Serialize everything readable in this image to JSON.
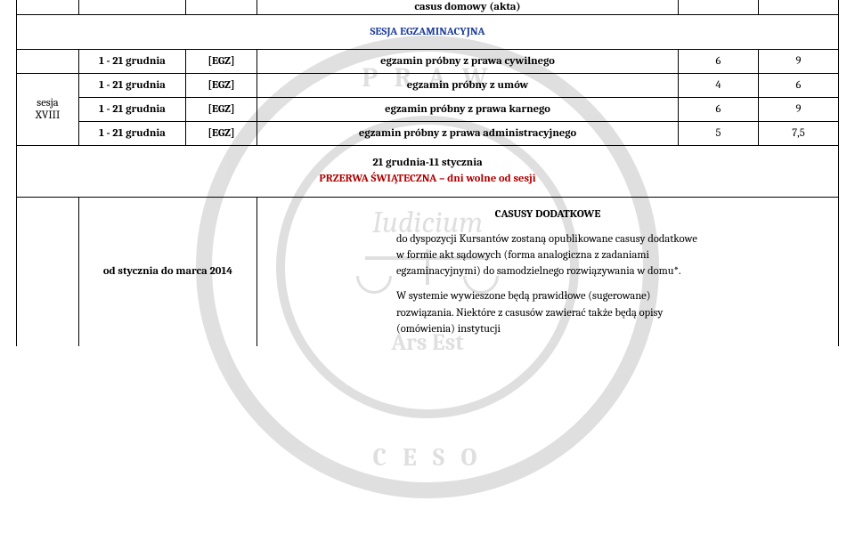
{
  "top_row": {
    "cell": "casus domowy (akta)"
  },
  "section_title": "SESJA EGZAMINACYJNA",
  "session_label": {
    "line1": "sesja",
    "line2": "XVIII"
  },
  "exam_rows": [
    {
      "date": "1 - 21 grudnia",
      "tag": "[EGZ]",
      "name": "egzamin próbny z prawa cywilnego",
      "c5": "6",
      "c6": "9"
    },
    {
      "date": "1 - 21 grudnia",
      "tag": "[EGZ]",
      "name": "egzamin próbny z umów",
      "c5": "4",
      "c6": "6"
    },
    {
      "date": "1 - 21 grudnia",
      "tag": "[EGZ]",
      "name": "egzamin próbny z prawa karnego",
      "c5": "6",
      "c6": "9"
    },
    {
      "date": "1 - 21 grudnia",
      "tag": "[EGZ]",
      "name": "egzamin próbny z prawa administracyjnego",
      "c5": "5",
      "c6": "7,5"
    }
  ],
  "break_banner": {
    "line1": "21 grudnia-11 stycznia",
    "line2": "PRZERWA ŚWIĄTECZNA – dni wolne od sesji"
  },
  "casusy": {
    "date": "od stycznia do marca 2014",
    "heading": "CASUSY DODATKOWE",
    "para1": "do dyspozycji Kursantów zostaną opublikowane casusy dodatkowe w formie akt sądowych (forma analogiczna z zadaniami egzaminacyjnymi) do samodzielnego rozwiązywania w domu*.",
    "para2": "W systemie wywieszone będą prawidłowe (sugerowane) rozwiązania. Niektóre z casusów zawierać także będą opisy (omówienia) instytucji"
  },
  "colors": {
    "blue": "#1f3f9a",
    "red": "#b00000",
    "border": "#000000",
    "background": "#ffffff"
  }
}
